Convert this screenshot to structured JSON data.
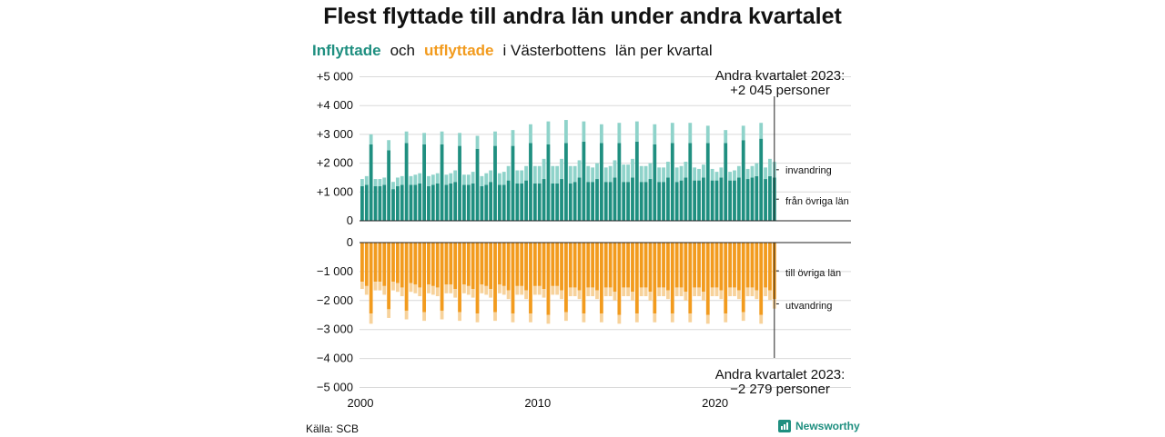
{
  "title": "Flest flyttade till andra län under andra kvartalet",
  "subtitle": {
    "part1": "Inflyttade",
    "part2": "och",
    "part3": "utflyttade",
    "part4": "i Västerbottens",
    "part5": "län per kvartal"
  },
  "source": "Källa: SCB",
  "brand": {
    "name": "Newsworthy",
    "icon": "newsworthy-logo-icon"
  },
  "colors": {
    "inflyttade": "#1f8f80",
    "invandring": "#8fd3ca",
    "utflyttade": "#f29b1e",
    "utvandring": "#f7d29b",
    "grid": "#d9d9d9",
    "axis": "#222222"
  },
  "chart_data": {
    "type": "bar",
    "stacked": true,
    "x_start_year": 2000,
    "quarters_per_year": 4,
    "x": [
      "2000 Q1",
      "2000 Q2",
      "2000 Q3",
      "2000 Q4",
      "2001 Q1",
      "2001 Q2",
      "2001 Q3",
      "2001 Q4",
      "2002 Q1",
      "2002 Q2",
      "2002 Q3",
      "2002 Q4",
      "2003 Q1",
      "2003 Q2",
      "2003 Q3",
      "2003 Q4",
      "2004 Q1",
      "2004 Q2",
      "2004 Q3",
      "2004 Q4",
      "2005 Q1",
      "2005 Q2",
      "2005 Q3",
      "2005 Q4",
      "2006 Q1",
      "2006 Q2",
      "2006 Q3",
      "2006 Q4",
      "2007 Q1",
      "2007 Q2",
      "2007 Q3",
      "2007 Q4",
      "2008 Q1",
      "2008 Q2",
      "2008 Q3",
      "2008 Q4",
      "2009 Q1",
      "2009 Q2",
      "2009 Q3",
      "2009 Q4",
      "2010 Q1",
      "2010 Q2",
      "2010 Q3",
      "2010 Q4",
      "2011 Q1",
      "2011 Q2",
      "2011 Q3",
      "2011 Q4",
      "2012 Q1",
      "2012 Q2",
      "2012 Q3",
      "2012 Q4",
      "2013 Q1",
      "2013 Q2",
      "2013 Q3",
      "2013 Q4",
      "2014 Q1",
      "2014 Q2",
      "2014 Q3",
      "2014 Q4",
      "2015 Q1",
      "2015 Q2",
      "2015 Q3",
      "2015 Q4",
      "2016 Q1",
      "2016 Q2",
      "2016 Q3",
      "2016 Q4",
      "2017 Q1",
      "2017 Q2",
      "2017 Q3",
      "2017 Q4",
      "2018 Q1",
      "2018 Q2",
      "2018 Q3",
      "2018 Q4",
      "2019 Q1",
      "2019 Q2",
      "2019 Q3",
      "2019 Q4",
      "2020 Q1",
      "2020 Q2",
      "2020 Q3",
      "2020 Q4",
      "2021 Q1",
      "2021 Q2",
      "2021 Q3",
      "2021 Q4",
      "2022 Q1",
      "2022 Q2",
      "2022 Q3",
      "2022 Q4",
      "2023 Q1",
      "2023 Q2"
    ],
    "series": [
      {
        "name": "från övriga län",
        "group": "in",
        "values": [
          1200,
          1250,
          2650,
          1200,
          1200,
          1250,
          2450,
          1100,
          1200,
          1250,
          2700,
          1250,
          1250,
          1300,
          2650,
          1200,
          1250,
          1300,
          2650,
          1250,
          1300,
          1350,
          2600,
          1250,
          1250,
          1300,
          2500,
          1200,
          1250,
          1350,
          2600,
          1250,
          1250,
          1400,
          2600,
          1300,
          1300,
          1400,
          2700,
          1300,
          1300,
          1450,
          2650,
          1300,
          1300,
          1450,
          2700,
          1300,
          1350,
          1500,
          2750,
          1350,
          1350,
          1450,
          2700,
          1350,
          1350,
          1500,
          2700,
          1350,
          1350,
          1500,
          2750,
          1350,
          1350,
          1450,
          2650,
          1350,
          1350,
          1500,
          2700,
          1350,
          1400,
          1500,
          2700,
          1400,
          1400,
          1500,
          2700,
          1400,
          1400,
          1500,
          2700,
          1400,
          1400,
          1500,
          2800,
          1450,
          1500,
          1550,
          2850,
          1450,
          1550,
          1500
        ]
      },
      {
        "name": "invandring",
        "group": "in",
        "values": [
          250,
          300,
          350,
          250,
          250,
          250,
          350,
          250,
          300,
          300,
          400,
          300,
          350,
          350,
          400,
          350,
          350,
          350,
          450,
          350,
          350,
          400,
          450,
          350,
          350,
          400,
          450,
          350,
          400,
          400,
          500,
          400,
          450,
          500,
          550,
          450,
          450,
          500,
          650,
          600,
          600,
          700,
          800,
          600,
          600,
          700,
          800,
          600,
          550,
          600,
          700,
          550,
          500,
          550,
          650,
          500,
          550,
          600,
          700,
          600,
          600,
          650,
          700,
          550,
          550,
          550,
          700,
          500,
          500,
          550,
          700,
          500,
          500,
          550,
          700,
          450,
          400,
          450,
          600,
          400,
          300,
          350,
          450,
          300,
          350,
          400,
          500,
          350,
          400,
          450,
          550,
          400,
          600,
          545
        ]
      },
      {
        "name": "till övriga län",
        "group": "out",
        "values": [
          -1350,
          -1500,
          -2450,
          -1350,
          -1350,
          -1500,
          -2300,
          -1350,
          -1400,
          -1550,
          -2350,
          -1400,
          -1450,
          -1550,
          -2400,
          -1450,
          -1500,
          -1550,
          -2350,
          -1450,
          -1450,
          -1600,
          -2400,
          -1450,
          -1500,
          -1600,
          -2450,
          -1450,
          -1500,
          -1600,
          -2400,
          -1450,
          -1500,
          -1650,
          -2450,
          -1500,
          -1500,
          -1650,
          -2450,
          -1500,
          -1500,
          -1600,
          -2500,
          -1500,
          -1500,
          -1650,
          -2400,
          -1550,
          -1550,
          -1650,
          -2450,
          -1550,
          -1550,
          -1650,
          -2450,
          -1550,
          -1550,
          -1700,
          -2500,
          -1550,
          -1550,
          -1700,
          -2450,
          -1550,
          -1550,
          -1700,
          -2450,
          -1550,
          -1550,
          -1650,
          -2450,
          -1550,
          -1550,
          -1700,
          -2450,
          -1550,
          -1550,
          -1700,
          -2500,
          -1550,
          -1550,
          -1650,
          -2450,
          -1550,
          -1550,
          -1650,
          -2400,
          -1550,
          -1550,
          -1650,
          -2500,
          -1550,
          -1650,
          -1950
        ]
      },
      {
        "name": "utvandring",
        "group": "out",
        "values": [
          -250,
          -300,
          -350,
          -300,
          -300,
          -300,
          -300,
          -300,
          -300,
          -300,
          -300,
          -300,
          -300,
          -300,
          -300,
          -300,
          -300,
          -300,
          -300,
          -300,
          -300,
          -300,
          -300,
          -300,
          -300,
          -300,
          -300,
          -300,
          -300,
          -300,
          -300,
          -300,
          -300,
          -300,
          -300,
          -300,
          -300,
          -300,
          -300,
          -300,
          -300,
          -300,
          -300,
          -300,
          -300,
          -300,
          -300,
          -300,
          -300,
          -300,
          -300,
          -300,
          -300,
          -300,
          -300,
          -300,
          -300,
          -300,
          -300,
          -300,
          -300,
          -300,
          -300,
          -300,
          -300,
          -300,
          -300,
          -300,
          -300,
          -300,
          -300,
          -300,
          -300,
          -300,
          -300,
          -300,
          -300,
          -300,
          -300,
          -300,
          -300,
          -300,
          -300,
          -300,
          -300,
          -300,
          -300,
          -300,
          -300,
          -300,
          -300,
          -300,
          -329,
          -329
        ]
      }
    ],
    "y_top": {
      "ylim": [
        0,
        5000
      ],
      "ticks": [
        0,
        1000,
        2000,
        3000,
        4000,
        5000
      ],
      "tick_labels": [
        "0",
        "+1 000",
        "+2 000",
        "+3 000",
        "+4 000",
        "+5 000"
      ]
    },
    "y_bottom": {
      "ylim": [
        -5000,
        0
      ],
      "ticks": [
        0,
        -1000,
        -2000,
        -3000,
        -4000,
        -5000
      ],
      "tick_labels": [
        "0",
        "−1 000",
        "−2 000",
        "−3 000",
        "−4 000",
        "−5 000"
      ]
    },
    "x_ticks": [
      2000,
      2010,
      2020
    ],
    "x_tick_labels": [
      "2000",
      "2010",
      "2020"
    ],
    "grid": true,
    "annotations": {
      "top_line1": "Andra kvartalet 2023:",
      "top_line2": "+2 045 personer",
      "bottom_line1": "Andra kvartalet 2023:",
      "bottom_line2": "−2 279 personer"
    },
    "series_labels": {
      "invandring": "invandring",
      "fran_ovriga_lan": "från övriga län",
      "till_ovriga_lan": "till övriga län",
      "utvandring": "utvandring"
    }
  }
}
